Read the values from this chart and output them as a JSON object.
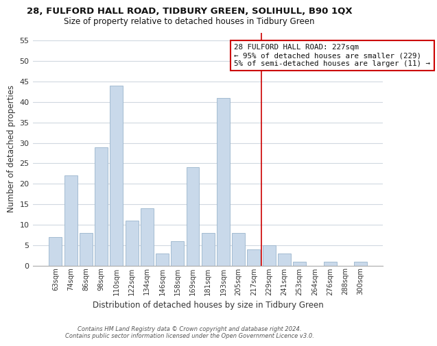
{
  "title1": "28, FULFORD HALL ROAD, TIDBURY GREEN, SOLIHULL, B90 1QX",
  "title2": "Size of property relative to detached houses in Tidbury Green",
  "xlabel": "Distribution of detached houses by size in Tidbury Green",
  "ylabel": "Number of detached properties",
  "bin_labels": [
    "63sqm",
    "74sqm",
    "86sqm",
    "98sqm",
    "110sqm",
    "122sqm",
    "134sqm",
    "146sqm",
    "158sqm",
    "169sqm",
    "181sqm",
    "193sqm",
    "205sqm",
    "217sqm",
    "229sqm",
    "241sqm",
    "253sqm",
    "264sqm",
    "276sqm",
    "288sqm",
    "300sqm"
  ],
  "bar_heights": [
    7,
    22,
    8,
    29,
    44,
    11,
    14,
    3,
    6,
    24,
    8,
    41,
    8,
    4,
    5,
    3,
    1,
    0,
    1,
    0,
    1
  ],
  "bar_color": "#c9d9ea",
  "bar_edge_color": "#9ab5cc",
  "vline_color": "#cc0000",
  "annotation_lines": [
    "28 FULFORD HALL ROAD: 227sqm",
    "← 95% of detached houses are smaller (229)",
    "5% of semi-detached houses are larger (11) →"
  ],
  "annotation_box_color": "#ffffff",
  "annotation_box_edge": "#cc0000",
  "ylim": [
    0,
    57
  ],
  "yticks": [
    0,
    5,
    10,
    15,
    20,
    25,
    30,
    35,
    40,
    45,
    50,
    55
  ],
  "footer": "Contains HM Land Registry data © Crown copyright and database right 2024.\nContains public sector information licensed under the Open Government Licence v3.0.",
  "bg_color": "#ffffff",
  "grid_color": "#d0d8e0",
  "title1_fontsize": 9.5,
  "title2_fontsize": 8.5
}
